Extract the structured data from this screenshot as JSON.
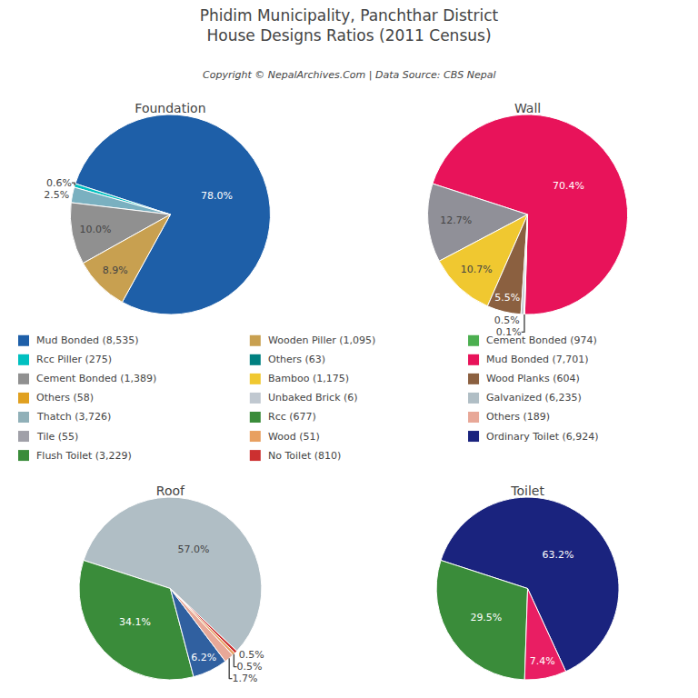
{
  "title": "Phidim Municipality, Panchthar District\nHouse Designs Ratios (2011 Census)",
  "subtitle": "Copyright © NepalArchives.Com | Data Source: CBS Nepal",
  "annotations": [
    {
      "text": "Mud Bonded (8,535)",
      "color": "#1e5fa8"
    },
    {
      "text": "Rcc Piller (275)",
      "color": "#00c0c0"
    },
    {
      "text": "Cement Bonded (1,389)",
      "color": "#909090"
    },
    {
      "text": "Others (58)",
      "color": "#e0a020"
    },
    {
      "text": "Thatch (3,726)",
      "color": "#90b0b8"
    },
    {
      "text": "Tile (55)",
      "color": "#a0a0a8"
    },
    {
      "text": "Flush Toilet (3,229)",
      "color": "#3a8c3a"
    },
    {
      "text": "Wooden Piller (1,095)",
      "color": "#c8a050"
    },
    {
      "text": "Others (63)",
      "color": "#008080"
    },
    {
      "text": "Bamboo (1,175)",
      "color": "#f0c830"
    },
    {
      "text": "Unbaked Brick (6)",
      "color": "#c0c8d0"
    },
    {
      "text": "Rcc (677)",
      "color": "#3a8c3a"
    },
    {
      "text": "Wood (51)",
      "color": "#e8a060"
    },
    {
      "text": "No Toilet (810)",
      "color": "#cc3030"
    },
    {
      "text": "Cement Bonded (974)",
      "color": "#4caf50"
    },
    {
      "text": "Mud Bonded (7,701)",
      "color": "#e8135a"
    },
    {
      "text": "Wood Planks (604)",
      "color": "#8b6040"
    },
    {
      "text": "Galvanized (6,235)",
      "color": "#b0bec5"
    },
    {
      "text": "Others (189)",
      "color": "#e8a898"
    },
    {
      "text": "Ordinary Toilet (6,924)",
      "color": "#1a237e"
    }
  ],
  "chart_data": [
    {
      "type": "pie",
      "title": "Foundation",
      "values": [
        78.0,
        0.6,
        2.5,
        10.0,
        8.9
      ],
      "value_labels": [
        "78.0%",
        "0.6%",
        "2.5%",
        "10.0%",
        "8.9%"
      ],
      "colors": [
        "#1e5fa8",
        "#00c0c0",
        "#7ab0c0",
        "#909090",
        "#c8a050"
      ]
    },
    {
      "type": "pie",
      "title": "Wall",
      "values": [
        70.4,
        12.7,
        10.7,
        5.5,
        0.5,
        0.1
      ],
      "value_labels": [
        "70.4%",
        "12.7%",
        "10.7%",
        "5.5%",
        "0.5%",
        "0.1%"
      ],
      "colors": [
        "#e8135a",
        "#909098",
        "#f0c830",
        "#8b6040",
        "#c0c8d0",
        "#e0a898"
      ]
    },
    {
      "type": "pie",
      "title": "Roof",
      "values": [
        57.0,
        34.1,
        6.2,
        1.7,
        0.5,
        0.5
      ],
      "value_labels": [
        "57.0%",
        "34.1%",
        "6.2%",
        "1.7%",
        "0.5%",
        "0.5%"
      ],
      "colors": [
        "#b0bec5",
        "#3a8c3a",
        "#3060a0",
        "#e8a898",
        "#e8a060",
        "#cc3030"
      ]
    },
    {
      "type": "pie",
      "title": "Toilet",
      "values": [
        63.2,
        29.5,
        7.4
      ],
      "value_labels": [
        "63.2%",
        "29.5%",
        "7.4%"
      ],
      "colors": [
        "#1a237e",
        "#3a8c3a",
        "#e91e63"
      ]
    }
  ]
}
